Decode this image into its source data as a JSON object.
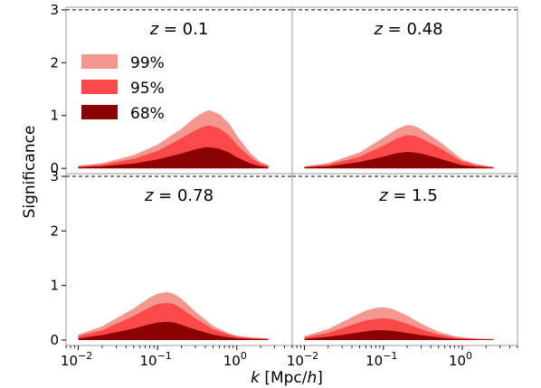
{
  "figure": {
    "ylabel": "Significance",
    "xlabel": "k [Mpc/h]"
  },
  "chart_data": {
    "type": "area",
    "ylabel": "Significance",
    "xlabel": "k [Mpc/h]",
    "xscale": "log",
    "xlim": [
      0.007,
      5
    ],
    "ylim": [
      -0.1,
      3.05
    ],
    "yticks": [
      "0",
      "1",
      "2",
      "3"
    ],
    "xticks": [
      "10^-2",
      "10^-1",
      "10^0"
    ],
    "threshold_line": {
      "y": 3,
      "style": "dashed"
    },
    "legend": {
      "position": "upper-left (top-left panel)",
      "entries": [
        {
          "name": "99%",
          "color": "#f4978e"
        },
        {
          "name": "95%",
          "color": "#fb4848"
        },
        {
          "name": "68%",
          "color": "#8b0000"
        }
      ]
    },
    "panels": [
      {
        "label": "z = 0.1",
        "z_prefix": "z",
        "z_value": "0.1",
        "k": [
          0.01,
          0.02,
          0.05,
          0.1,
          0.2,
          0.3,
          0.4,
          0.45,
          0.6,
          0.8,
          1.0,
          1.5,
          2.0,
          2.5
        ],
        "series": [
          {
            "name": "99%",
            "values": [
              0.05,
              0.1,
              0.25,
              0.45,
              0.75,
              0.97,
              1.08,
              1.1,
              1.03,
              0.85,
              0.62,
              0.28,
              0.12,
              0.06
            ]
          },
          {
            "name": "95%",
            "values": [
              0.04,
              0.07,
              0.18,
              0.33,
              0.57,
              0.72,
              0.8,
              0.81,
              0.76,
              0.62,
              0.45,
              0.2,
              0.09,
              0.05
            ]
          },
          {
            "name": "68%",
            "values": [
              0.02,
              0.04,
              0.09,
              0.17,
              0.28,
              0.36,
              0.4,
              0.4,
              0.37,
              0.3,
              0.21,
              0.09,
              0.04,
              0.02
            ]
          }
        ]
      },
      {
        "label": "z = 0.48",
        "z_prefix": "z",
        "z_value": "0.48",
        "k": [
          0.01,
          0.02,
          0.05,
          0.1,
          0.15,
          0.2,
          0.25,
          0.3,
          0.5,
          0.8,
          1.0,
          1.5,
          2.0,
          2.5
        ],
        "series": [
          {
            "name": "99%",
            "values": [
              0.04,
              0.1,
              0.3,
              0.58,
              0.75,
              0.82,
              0.8,
              0.74,
              0.52,
              0.28,
              0.17,
              0.08,
              0.05,
              0.03
            ]
          },
          {
            "name": "95%",
            "values": [
              0.03,
              0.07,
              0.22,
              0.43,
              0.57,
              0.63,
              0.62,
              0.57,
              0.4,
              0.21,
              0.13,
              0.06,
              0.04,
              0.02
            ]
          },
          {
            "name": "68%",
            "values": [
              0.02,
              0.04,
              0.12,
              0.22,
              0.29,
              0.31,
              0.3,
              0.28,
              0.19,
              0.1,
              0.06,
              0.03,
              0.02,
              0.01
            ]
          }
        ]
      },
      {
        "label": "z = 0.78",
        "z_prefix": "z",
        "z_value": "0.78",
        "k": [
          0.01,
          0.02,
          0.05,
          0.08,
          0.1,
          0.13,
          0.16,
          0.2,
          0.3,
          0.5,
          0.8,
          1.0,
          1.5,
          2.5
        ],
        "series": [
          {
            "name": "99%",
            "values": [
              0.1,
              0.25,
              0.58,
              0.78,
              0.85,
              0.88,
              0.85,
              0.76,
              0.52,
              0.26,
              0.12,
              0.08,
              0.05,
              0.03
            ]
          },
          {
            "name": "95%",
            "values": [
              0.07,
              0.18,
              0.44,
              0.6,
              0.66,
              0.68,
              0.66,
              0.58,
              0.4,
              0.2,
              0.1,
              0.06,
              0.04,
              0.02
            ]
          },
          {
            "name": "68%",
            "values": [
              0.03,
              0.09,
              0.21,
              0.29,
              0.32,
              0.33,
              0.32,
              0.28,
              0.19,
              0.1,
              0.05,
              0.03,
              0.02,
              0.01
            ]
          }
        ]
      },
      {
        "label": "z = 1.5",
        "z_prefix": "z",
        "z_value": "1.5",
        "k": [
          0.01,
          0.02,
          0.04,
          0.06,
          0.08,
          0.1,
          0.13,
          0.2,
          0.3,
          0.5,
          0.8,
          1.0,
          1.5,
          2.5
        ],
        "series": [
          {
            "name": "99%",
            "values": [
              0.07,
              0.2,
              0.42,
              0.54,
              0.59,
              0.6,
              0.57,
              0.45,
              0.3,
              0.15,
              0.07,
              0.05,
              0.03,
              0.02
            ]
          },
          {
            "name": "95%",
            "values": [
              0.05,
              0.13,
              0.28,
              0.36,
              0.39,
              0.4,
              0.38,
              0.3,
              0.2,
              0.1,
              0.05,
              0.03,
              0.02,
              0.01
            ]
          },
          {
            "name": "68%",
            "values": [
              0.02,
              0.06,
              0.12,
              0.16,
              0.18,
              0.18,
              0.17,
              0.13,
              0.09,
              0.05,
              0.02,
              0.02,
              0.01,
              0.01
            ]
          }
        ]
      }
    ]
  }
}
